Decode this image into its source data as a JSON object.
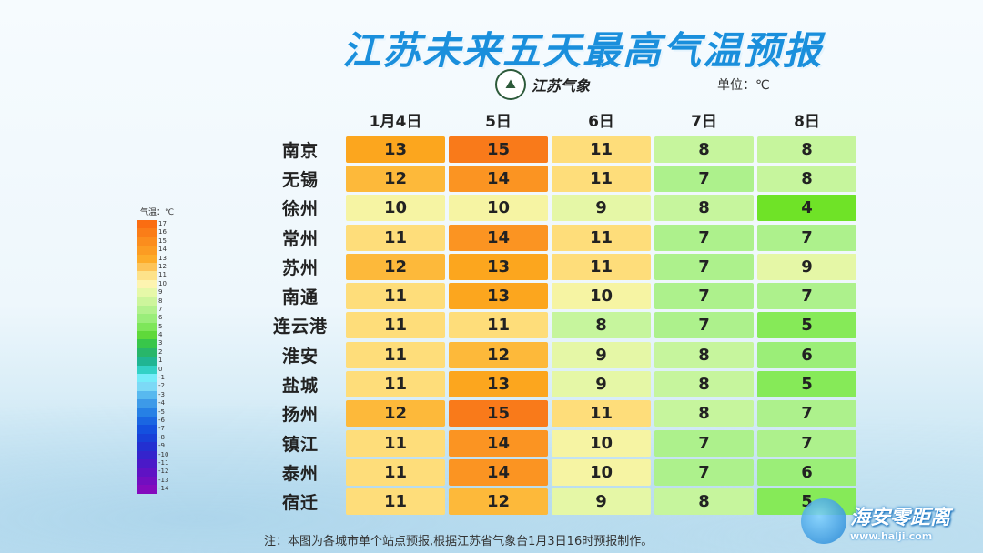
{
  "title": "江苏未来五天最高气温预报",
  "logo": {
    "text": "江苏气象",
    "icon": "weather-bureau-emblem-icon"
  },
  "unit": "单位：℃",
  "days": [
    "1月4日",
    "5日",
    "6日",
    "7日",
    "8日"
  ],
  "rows": [
    {
      "city": "南京",
      "values": [
        "13",
        "15",
        "11",
        "8",
        "8"
      ]
    },
    {
      "city": "无锡",
      "values": [
        "12",
        "14",
        "11",
        "7",
        "8"
      ]
    },
    {
      "city": "徐州",
      "values": [
        "10",
        "10",
        "9",
        "8",
        "4"
      ]
    },
    {
      "city": "常州",
      "values": [
        "11",
        "14",
        "11",
        "7",
        "7"
      ]
    },
    {
      "city": "苏州",
      "values": [
        "12",
        "13",
        "11",
        "7",
        "9"
      ]
    },
    {
      "city": "南通",
      "values": [
        "11",
        "13",
        "10",
        "7",
        "7"
      ]
    },
    {
      "city": "连云港",
      "values": [
        "11",
        "11",
        "8",
        "7",
        "5"
      ]
    },
    {
      "city": "淮安",
      "values": [
        "11",
        "12",
        "9",
        "8",
        "6"
      ]
    },
    {
      "city": "盐城",
      "values": [
        "11",
        "13",
        "9",
        "8",
        "5"
      ]
    },
    {
      "city": "扬州",
      "values": [
        "12",
        "15",
        "11",
        "8",
        "7"
      ]
    },
    {
      "city": "镇江",
      "values": [
        "11",
        "14",
        "10",
        "7",
        "7"
      ]
    },
    {
      "city": "泰州",
      "values": [
        "11",
        "14",
        "10",
        "7",
        "6"
      ]
    },
    {
      "city": "宿迁",
      "values": [
        "11",
        "12",
        "9",
        "8",
        "5"
      ]
    }
  ],
  "colors": {
    "15": "#f97a1a",
    "14": "#fb9422",
    "13": "#fca61e",
    "12": "#fdb93a",
    "11": "#fedd7a",
    "10": "#f6f4a3",
    "9": "#e5f7a6",
    "8": "#c6f59d",
    "7": "#adf18c",
    "6": "#9bee78",
    "5": "#86ea58",
    "4": "#6fe327"
  },
  "legend": {
    "title": "气温：℃",
    "labels": [
      "17",
      "16",
      "15",
      "14",
      "13",
      "12",
      "11",
      "10",
      "9",
      "8",
      "7",
      "6",
      "5",
      "4",
      "3",
      "2",
      "1",
      "0",
      "-1",
      "-2",
      "-3",
      "-4",
      "-5",
      "-6",
      "-7",
      "-8",
      "-9",
      "-10",
      "-11",
      "-12",
      "-13",
      "-14"
    ],
    "colors": [
      "#fa6d12",
      "#fa7d18",
      "#fb8d1d",
      "#fc9c22",
      "#fdac29",
      "#fdc458",
      "#fde28a",
      "#fdf4b0",
      "#e6f8a8",
      "#cdf59c",
      "#b3f18e",
      "#9aed7a",
      "#7ee65a",
      "#5fd93a",
      "#38c64a",
      "#28b66a",
      "#20b593",
      "#33d1c6",
      "#75ecf9",
      "#7cd9f6",
      "#58b9ef",
      "#3d9ae8",
      "#2680e5",
      "#1a66e2",
      "#1450df",
      "#1840d8",
      "#2330d1",
      "#3424cc",
      "#4a19c8",
      "#5f12c4",
      "#720ec0",
      "#840bbd"
    ]
  },
  "note": "注：本图为各城市单个站点预报,根据江苏省气象台1月3日16时预报制作。",
  "watermark": {
    "main": "海安零距离",
    "url": "www.halji.com"
  }
}
